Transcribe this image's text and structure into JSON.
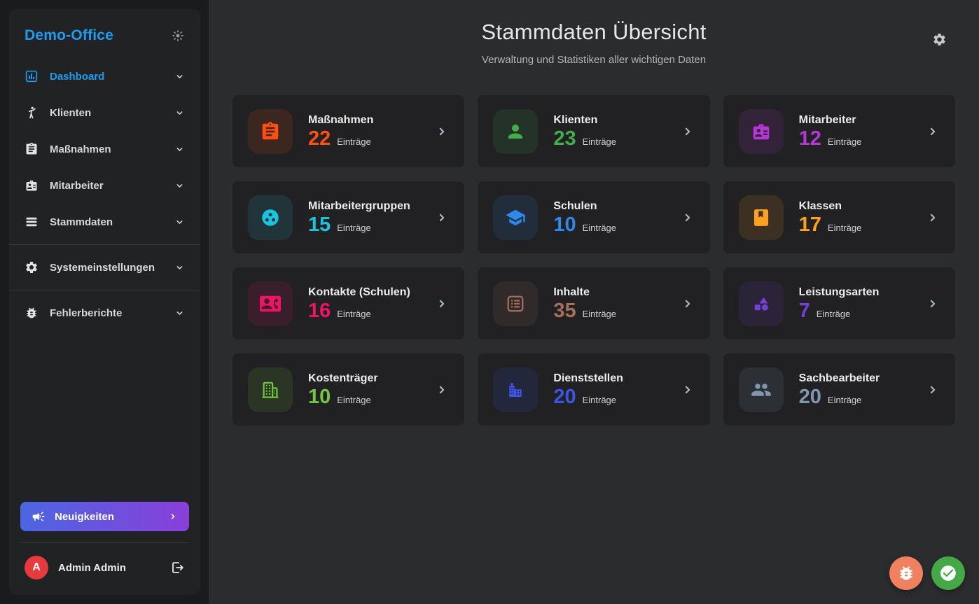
{
  "app": {
    "brand": "Demo-Office"
  },
  "sidebar": {
    "items": [
      {
        "label": "Dashboard",
        "icon": "chart",
        "active": true,
        "expandable": false
      },
      {
        "label": "Klienten",
        "icon": "person-wave",
        "expandable": false
      },
      {
        "label": "Maßnahmen",
        "icon": "clipboard",
        "expandable": true
      },
      {
        "label": "Mitarbeiter",
        "icon": "badge",
        "expandable": true
      },
      {
        "label": "Stammdaten",
        "icon": "stack",
        "expandable": true
      },
      {
        "label": "Systemeinstellungen",
        "icon": "gear",
        "expandable": false,
        "divider_before": true,
        "divider_after": true
      },
      {
        "label": "Fehlerberichte",
        "icon": "bug",
        "expandable": false
      }
    ],
    "news_button": {
      "label": "Neuigkeiten"
    },
    "user": {
      "name": "Admin Admin",
      "avatar_initial": "A"
    }
  },
  "header": {
    "title": "Stammdaten Übersicht",
    "subtitle": "Verwaltung und Statistiken aller wichtigen Daten"
  },
  "entries_label": "Einträge",
  "cards": [
    {
      "label": "Maßnahmen",
      "count": "22",
      "icon": "clipboard",
      "color": "#ff4f12"
    },
    {
      "label": "Klienten",
      "count": "23",
      "icon": "person",
      "color": "#43ad4c"
    },
    {
      "label": "Mitarbeiter",
      "count": "12",
      "icon": "badge",
      "color": "#b736d8"
    },
    {
      "label": "Mitarbeitergruppen",
      "count": "15",
      "icon": "groups-circle",
      "color": "#1cc3de"
    },
    {
      "label": "Schulen",
      "count": "10",
      "icon": "school",
      "color": "#2f87e9"
    },
    {
      "label": "Klassen",
      "count": "17",
      "icon": "book",
      "color": "#ffa11e"
    },
    {
      "label": "Kontakte (Schulen)",
      "count": "16",
      "icon": "contacts",
      "color": "#ee1365"
    },
    {
      "label": "Inhalte",
      "count": "35",
      "icon": "list-box",
      "color": "#a4705c"
    },
    {
      "label": "Leistungsarten",
      "count": "7",
      "icon": "shapes",
      "color": "#7440d8"
    },
    {
      "label": "Kostenträger",
      "count": "10",
      "icon": "building-outline",
      "color": "#72c53f"
    },
    {
      "label": "Dienststellen",
      "count": "20",
      "icon": "building",
      "color": "#3b55e6"
    },
    {
      "label": "Sachbearbeiter",
      "count": "20",
      "icon": "people",
      "color": "#7f97ae"
    }
  ],
  "fabs": [
    {
      "name": "bug-report",
      "icon": "bug",
      "color": "#f0815f"
    },
    {
      "name": "confirm",
      "icon": "check-circle",
      "color": "#43a845"
    }
  ],
  "colors": {
    "accent_blue": "#1f9cf0",
    "background": "#2b2c2e",
    "panel": "#212224",
    "avatar_red": "#e73a3f",
    "news_gradient_start": "#4b66e2",
    "news_gradient_end": "#8a3fd9"
  }
}
